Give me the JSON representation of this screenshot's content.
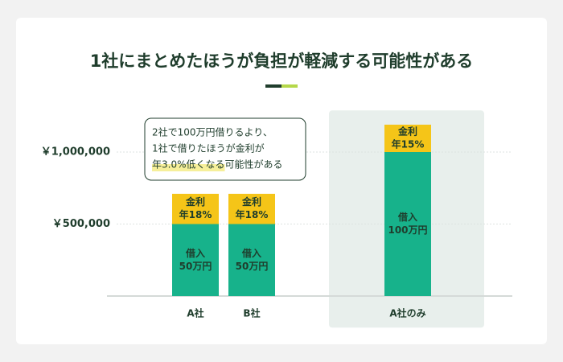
{
  "chart_data": {
    "type": "stacked-bar",
    "title": "1社にまとめたほうが負担が軽減する可能性がある",
    "categories": [
      "A社",
      "B社",
      "A社のみ"
    ],
    "series": [
      {
        "name": "借入",
        "color": "#17b28b",
        "values": [
          500000,
          500000,
          1000000
        ],
        "value_labels": [
          "50万円",
          "50万円",
          "100万円"
        ]
      },
      {
        "name": "金利",
        "color": "#f5c518",
        "values": [
          210000,
          210000,
          190000
        ],
        "rate_labels": [
          "年18%",
          "年18%",
          "年15%"
        ]
      }
    ],
    "ylim": [
      0,
      1300000
    ],
    "yticks": [
      {
        "value": 500000,
        "label": "￥500,000"
      },
      {
        "value": 1000000,
        "label": "￥1,000,000"
      }
    ],
    "grid": true,
    "highlight_index": 2,
    "annotation": {
      "lines": [
        "2社で100万円借りるより、",
        "1社で借りたほうが金利が"
      ],
      "highlight": "年3.0%低くなる",
      "rest": "可能性がある"
    }
  }
}
